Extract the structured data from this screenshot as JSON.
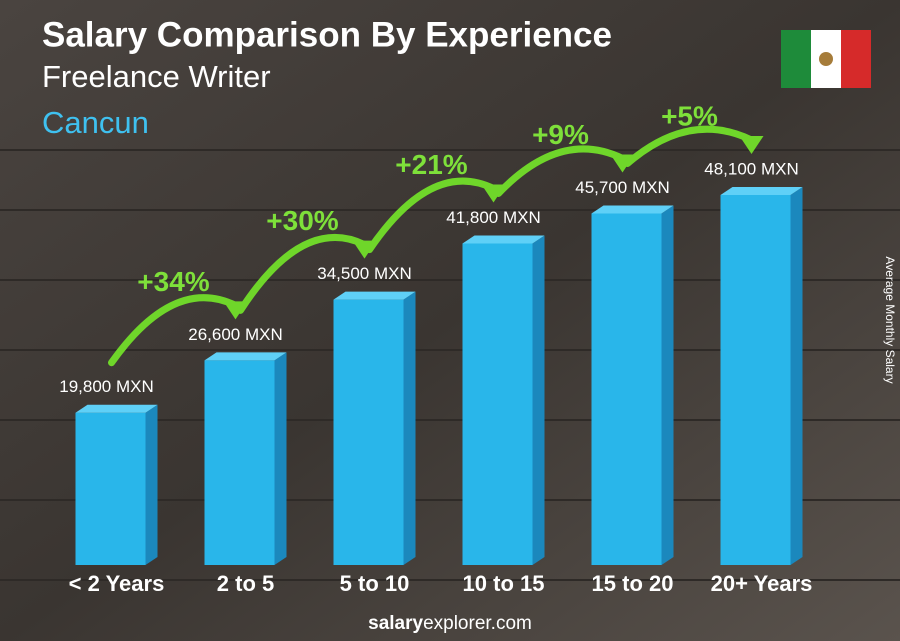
{
  "chart_data": {
    "type": "bar",
    "title": "Salary Comparison By Experience",
    "subtitle": "Freelance Writer",
    "location": "Cancun",
    "y_label": "Average Monthly Salary",
    "categories": [
      "< 2 Years",
      "2 to 5",
      "5 to 10",
      "10 to 15",
      "15 to 20",
      "20+ Years"
    ],
    "values": [
      19800,
      26600,
      34500,
      41800,
      45700,
      48100
    ],
    "value_labels": [
      "19,800 MXN",
      "26,600 MXN",
      "34,500 MXN",
      "41,800 MXN",
      "45,700 MXN",
      "48,100 MXN"
    ],
    "annotations": [
      "+34%",
      "+30%",
      "+21%",
      "+9%",
      "+5%"
    ],
    "color": "#29b6ea",
    "footer": [
      "salary",
      "explorer.com"
    ]
  }
}
